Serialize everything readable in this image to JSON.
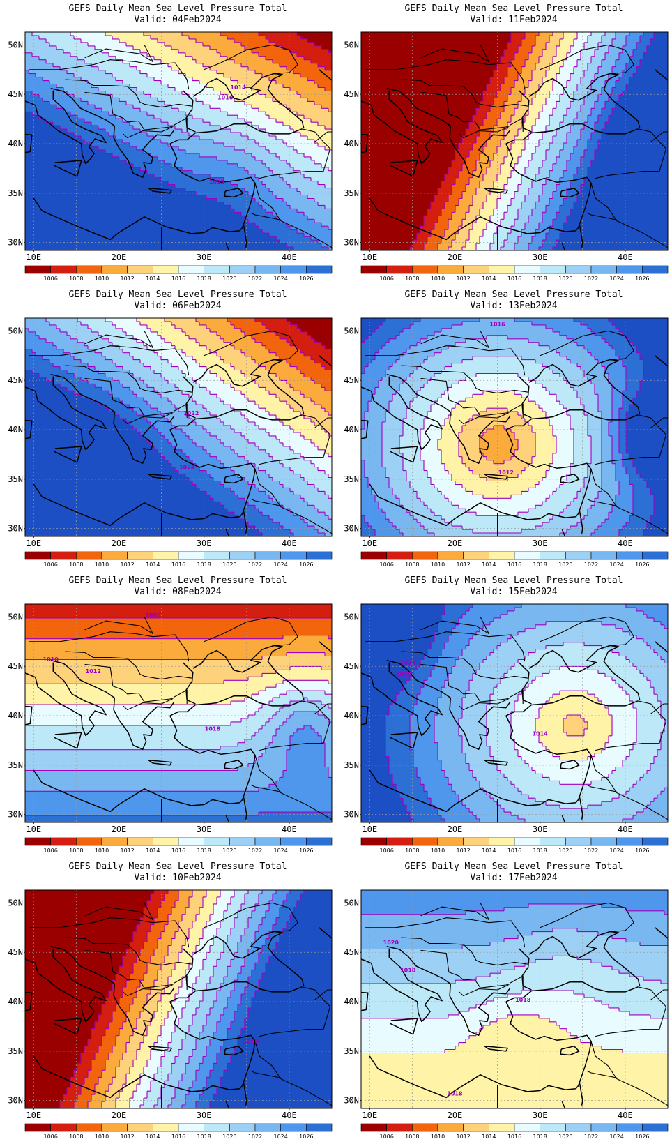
{
  "colors": {
    "palette": [
      "#9b0000",
      "#d41e0f",
      "#f2650c",
      "#fbaa3c",
      "#fed27a",
      "#fff3a8",
      "#e8fbff",
      "#bde8f7",
      "#9cd1f5",
      "#79b7f1",
      "#4f97ec",
      "#2c70d6",
      "#1d4fc4"
    ],
    "contour": "#a000c0",
    "border": "#000000",
    "grid": "#bbbbbb"
  },
  "common": {
    "title": "GEFS Daily Mean Sea Level Pressure Total",
    "lat_labels": [
      "50N",
      "45N",
      "40N",
      "35N",
      "30N"
    ],
    "lon_labels": [
      "10E",
      "20E",
      "30E",
      "40E"
    ],
    "colorbar_labels": [
      "1006",
      "1008",
      "1010",
      "1012",
      "1014",
      "1016",
      "1018",
      "1020",
      "1022",
      "1024",
      "1026"
    ]
  },
  "panels": [
    {
      "valid": "Valid: 04Feb2024",
      "contour_labels": [
        "1014",
        "1016",
        "1022"
      ]
    },
    {
      "valid": "Valid: 11Feb2024",
      "contour_labels": []
    },
    {
      "valid": "Valid: 06Feb2024",
      "contour_labels": [
        "1022",
        "1024"
      ]
    },
    {
      "valid": "Valid: 13Feb2024",
      "contour_labels": [
        "1016",
        "1012"
      ]
    },
    {
      "valid": "Valid: 08Feb2024",
      "contour_labels": [
        "1008",
        "1010",
        "1012",
        "1018"
      ]
    },
    {
      "valid": "Valid: 15Feb2024",
      "contour_labels": [
        "1022",
        "1020",
        "1014"
      ]
    },
    {
      "valid": "Valid: 10Feb2024",
      "contour_labels": [
        "1018"
      ]
    },
    {
      "valid": "Valid: 17Feb2024",
      "contour_labels": [
        "1020",
        "1018",
        "1018",
        "1018"
      ]
    }
  ]
}
